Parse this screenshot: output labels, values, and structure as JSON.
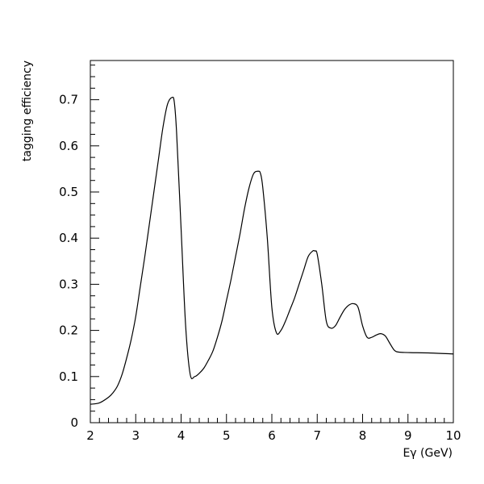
{
  "chart_data": {
    "type": "line",
    "title": "",
    "xlabel": "Eγ (GeV)",
    "ylabel": "tagging efficiency",
    "xlim": [
      2,
      10
    ],
    "ylim": [
      0,
      0.785
    ],
    "x_ticks": [
      2,
      3,
      4,
      5,
      6,
      7,
      8,
      9,
      10
    ],
    "y_ticks": [
      0,
      0.1,
      0.2,
      0.3,
      0.4,
      0.5,
      0.6,
      0.7
    ],
    "x_tick_labels": [
      "2",
      "3",
      "4",
      "5",
      "6",
      "7",
      "8",
      "9",
      "10"
    ],
    "y_tick_labels": [
      "0",
      "0.1",
      "0.2",
      "0.3",
      "0.4",
      "0.5",
      "0.6",
      "0.7"
    ],
    "grid": false,
    "legend": "none",
    "series": [
      {
        "x": [
          2.0,
          2.2,
          2.4,
          2.5,
          2.6,
          2.7,
          2.8,
          2.9,
          3.0,
          3.1,
          3.2,
          3.3,
          3.4,
          3.5,
          3.6,
          3.7,
          3.8,
          3.85,
          3.9,
          4.0,
          4.1,
          4.2,
          4.3,
          4.4,
          4.5,
          4.6,
          4.7,
          4.8,
          4.9,
          5.0,
          5.1,
          5.2,
          5.3,
          5.4,
          5.5,
          5.6,
          5.7,
          5.75,
          5.8,
          5.9,
          6.0,
          6.1,
          6.2,
          6.3,
          6.4,
          6.5,
          6.6,
          6.7,
          6.8,
          6.9,
          6.95,
          7.0,
          7.1,
          7.2,
          7.3,
          7.4,
          7.5,
          7.6,
          7.7,
          7.8,
          7.9,
          8.0,
          8.1,
          8.2,
          8.3,
          8.4,
          8.5,
          8.6,
          8.7,
          8.8,
          9.0,
          9.5,
          10.0
        ],
        "y": [
          0.04,
          0.043,
          0.055,
          0.065,
          0.08,
          0.105,
          0.14,
          0.18,
          0.23,
          0.295,
          0.36,
          0.43,
          0.5,
          0.57,
          0.64,
          0.69,
          0.705,
          0.695,
          0.63,
          0.42,
          0.21,
          0.105,
          0.1,
          0.107,
          0.118,
          0.135,
          0.155,
          0.185,
          0.22,
          0.265,
          0.31,
          0.36,
          0.41,
          0.465,
          0.51,
          0.54,
          0.545,
          0.54,
          0.51,
          0.4,
          0.25,
          0.195,
          0.2,
          0.22,
          0.245,
          0.27,
          0.3,
          0.33,
          0.36,
          0.372,
          0.372,
          0.365,
          0.3,
          0.22,
          0.205,
          0.21,
          0.228,
          0.245,
          0.255,
          0.258,
          0.25,
          0.21,
          0.185,
          0.185,
          0.19,
          0.193,
          0.188,
          0.172,
          0.157,
          0.153,
          0.152,
          0.151,
          0.149
        ]
      }
    ]
  }
}
